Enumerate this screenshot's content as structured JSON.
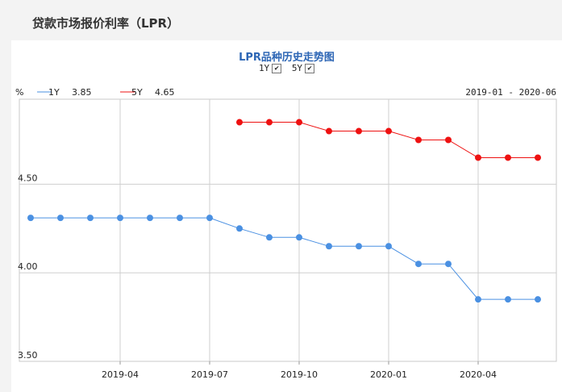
{
  "page": {
    "title": "贷款市场报价利率（LPR）"
  },
  "chart_data": {
    "type": "line",
    "title": "LPR品种历史走势图",
    "ylabel": "%",
    "date_range": "2019-01 - 2020-06",
    "x_ticks": [
      "2019-04",
      "2019-07",
      "2019-10",
      "2020-01",
      "2020-04"
    ],
    "y_ticks": [
      "3.50",
      "4.00",
      "4.50"
    ],
    "ylim": [
      3.5,
      4.98
    ],
    "xlim": [
      "2019-01",
      "2020-06"
    ],
    "grid": true,
    "series": [
      {
        "name": "1Y",
        "latest": "3.85",
        "color": "#4a90e2",
        "x": [
          "2019-01",
          "2019-02",
          "2019-03",
          "2019-04",
          "2019-05",
          "2019-06",
          "2019-07",
          "2019-08",
          "2019-09",
          "2019-10",
          "2019-11",
          "2019-12",
          "2020-01",
          "2020-02",
          "2020-03",
          "2020-04",
          "2020-05",
          "2020-06"
        ],
        "values": [
          4.31,
          4.31,
          4.31,
          4.31,
          4.31,
          4.31,
          4.31,
          4.25,
          4.2,
          4.2,
          4.15,
          4.15,
          4.15,
          4.05,
          4.05,
          3.85,
          3.85,
          3.85
        ]
      },
      {
        "name": "5Y",
        "latest": "4.65",
        "color": "#ee1111",
        "x": [
          "2019-08",
          "2019-09",
          "2019-10",
          "2019-11",
          "2019-12",
          "2020-01",
          "2020-02",
          "2020-03",
          "2020-04",
          "2020-05",
          "2020-06"
        ],
        "values": [
          4.85,
          4.85,
          4.85,
          4.8,
          4.8,
          4.8,
          4.75,
          4.75,
          4.65,
          4.65,
          4.65
        ]
      }
    ],
    "toggles": [
      {
        "label": "1Y",
        "checked": true
      },
      {
        "label": "5Y",
        "checked": true
      }
    ]
  }
}
